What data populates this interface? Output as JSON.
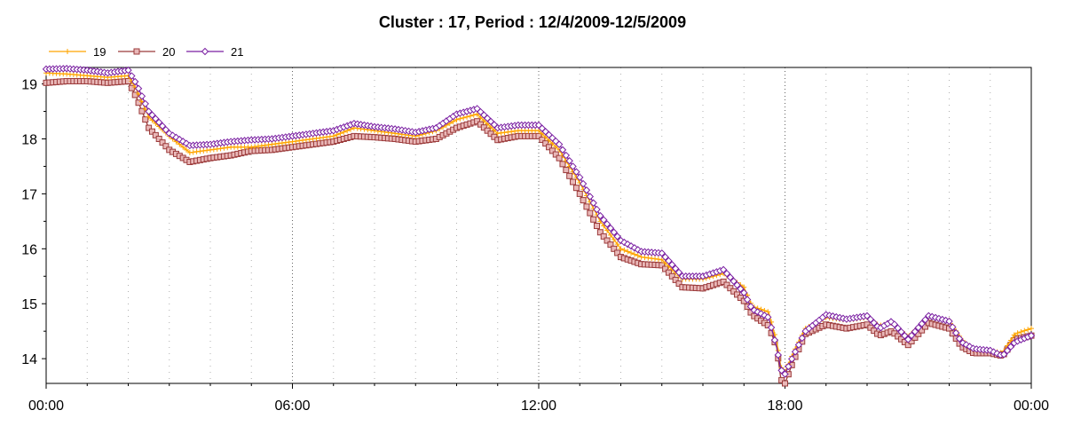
{
  "chart_data": {
    "type": "line",
    "title": "Cluster : 17, Period : 12/4/2009-12/5/2009",
    "xlabel": "",
    "ylabel": "",
    "x_ticks": [
      "00:00",
      "06:00",
      "12:00",
      "18:00",
      "00:00"
    ],
    "y_ticks": [
      14,
      15,
      16,
      17,
      18,
      19
    ],
    "xlim": [
      0,
      24
    ],
    "ylim": [
      13.55,
      19.3
    ],
    "grid": true,
    "legend_position": "top-left",
    "x_hours": [
      0,
      0.5,
      1,
      1.5,
      2,
      2.2,
      2.5,
      3,
      3.5,
      4,
      4.5,
      5,
      5.5,
      6,
      6.5,
      7,
      7.5,
      8,
      8.5,
      9,
      9.5,
      10,
      10.5,
      11,
      11.5,
      12,
      12.5,
      13,
      13.5,
      14,
      14.5,
      15,
      15.5,
      16,
      16.5,
      17,
      17.2,
      17.6,
      17.8,
      17.9,
      18,
      18.2,
      18.5,
      19,
      19.5,
      20,
      20.3,
      20.6,
      21,
      21.5,
      22,
      22.3,
      22.6,
      23,
      23.3,
      23.6,
      24
    ],
    "series": [
      {
        "name": "19",
        "color": "#ffa500",
        "marker": "plus",
        "values": [
          19.2,
          19.18,
          19.15,
          19.12,
          19.15,
          18.9,
          18.4,
          18.05,
          17.75,
          17.8,
          17.85,
          17.85,
          17.9,
          17.95,
          18.0,
          18.05,
          18.2,
          18.15,
          18.1,
          18.05,
          18.15,
          18.35,
          18.45,
          18.1,
          18.15,
          18.15,
          17.8,
          17.2,
          16.5,
          16.0,
          15.85,
          15.8,
          15.45,
          15.45,
          15.55,
          15.3,
          14.95,
          14.85,
          14.3,
          13.85,
          13.75,
          14.1,
          14.55,
          14.75,
          14.7,
          14.75,
          14.6,
          14.65,
          14.4,
          14.75,
          14.7,
          14.35,
          14.15,
          14.15,
          14.1,
          14.45,
          14.55
        ]
      },
      {
        "name": "20",
        "color": "#9b3a3a",
        "marker": "square",
        "values": [
          19.02,
          19.05,
          19.05,
          19.02,
          19.05,
          18.75,
          18.2,
          17.8,
          17.58,
          17.65,
          17.7,
          17.78,
          17.8,
          17.85,
          17.9,
          17.95,
          18.05,
          18.03,
          18.0,
          17.95,
          18.0,
          18.2,
          18.32,
          17.98,
          18.05,
          18.05,
          17.65,
          17.0,
          16.3,
          15.85,
          15.72,
          15.7,
          15.3,
          15.28,
          15.4,
          15.05,
          14.8,
          14.6,
          14.2,
          13.62,
          13.55,
          13.95,
          14.45,
          14.62,
          14.55,
          14.62,
          14.42,
          14.5,
          14.25,
          14.65,
          14.55,
          14.22,
          14.1,
          14.1,
          14.05,
          14.35,
          14.42
        ]
      },
      {
        "name": "21",
        "color": "#7a1fa2",
        "marker": "diamond",
        "values": [
          19.27,
          19.28,
          19.25,
          19.2,
          19.25,
          19.0,
          18.5,
          18.1,
          17.88,
          17.9,
          17.95,
          17.98,
          18.0,
          18.05,
          18.1,
          18.15,
          18.28,
          18.22,
          18.18,
          18.12,
          18.2,
          18.45,
          18.55,
          18.2,
          18.25,
          18.25,
          17.9,
          17.3,
          16.6,
          16.15,
          15.95,
          15.92,
          15.5,
          15.5,
          15.62,
          15.2,
          14.9,
          14.75,
          14.2,
          13.8,
          13.72,
          14.05,
          14.5,
          14.8,
          14.72,
          14.78,
          14.55,
          14.68,
          14.35,
          14.78,
          14.68,
          14.3,
          14.18,
          14.15,
          14.05,
          14.3,
          14.42
        ]
      }
    ]
  }
}
